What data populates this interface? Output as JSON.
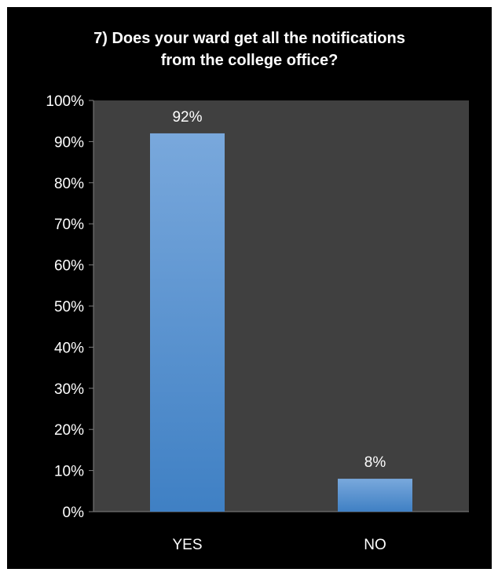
{
  "chart_data": {
    "type": "bar",
    "title_lines": [
      "7) Does your ward get all the notifications",
      "from the college office?"
    ],
    "categories": [
      "YES",
      "NO"
    ],
    "values": [
      92,
      8
    ],
    "data_labels": [
      "92%",
      "8%"
    ],
    "ylim": [
      0,
      100
    ],
    "y_ticks": [
      0,
      10,
      20,
      30,
      40,
      50,
      60,
      70,
      80,
      90,
      100
    ],
    "y_tick_labels": [
      "0%",
      "10%",
      "20%",
      "30%",
      "40%",
      "50%",
      "60%",
      "70%",
      "80%",
      "90%",
      "100%"
    ],
    "grid": false,
    "legend": "none",
    "colors": {
      "background": "#000000",
      "plot_area": "#404040",
      "bar_top": "#79a8dc",
      "bar_bottom": "#3f80c4",
      "axis": "#7f7f7f",
      "text": "#ffffff"
    }
  }
}
